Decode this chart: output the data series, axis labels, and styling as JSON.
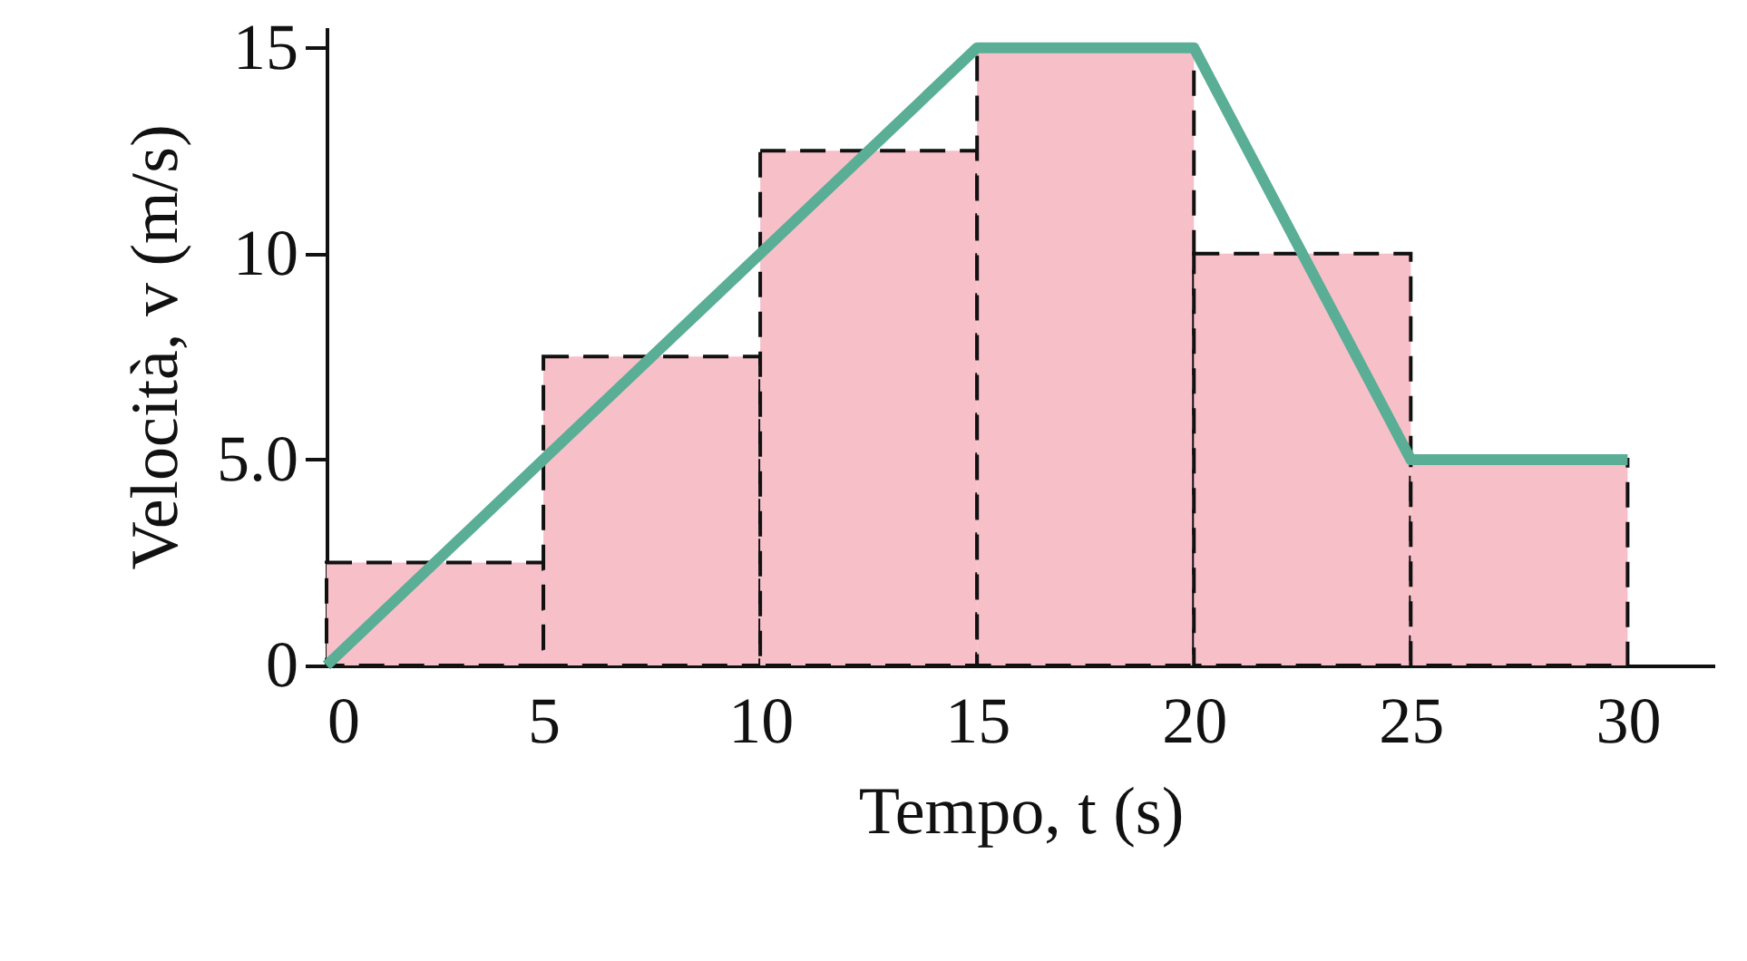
{
  "chart_data": {
    "type": "histogram",
    "xlabel": "Tempo, t (s)",
    "ylabel": "Velocità, v (m/s)",
    "xlim": [
      0,
      32
    ],
    "xticks": [
      0,
      5,
      10,
      15,
      20,
      25,
      30
    ],
    "ylim": [
      0,
      15.5
    ],
    "yticks": [
      0,
      {
        "value": 5,
        "label": "5.0"
      },
      10,
      15
    ],
    "grid": false,
    "series": [
      {
        "bins": [
          0,
          5,
          10,
          15,
          20,
          25,
          30
        ],
        "values": [
          2.5,
          7.5,
          12.5,
          15,
          10,
          5
        ],
        "color": "#f7c0c9",
        "line_style": "dashed"
      },
      {
        "type": "line",
        "x": [
          0,
          15,
          20,
          25,
          30
        ],
        "values": [
          0,
          15,
          15,
          5,
          5
        ],
        "color": "#5aae96",
        "line_style": "solid"
      }
    ]
  }
}
